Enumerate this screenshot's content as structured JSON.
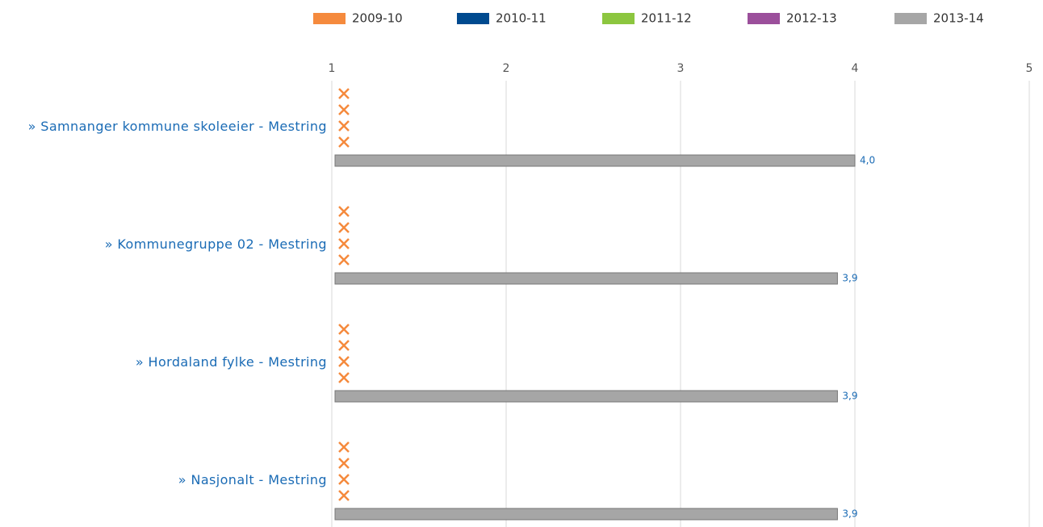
{
  "chart_data": {
    "type": "bar",
    "orientation": "horizontal",
    "categories": [
      "» Samnanger kommune skoleeier - Mestring",
      "» Kommunegruppe 02 - Mestring",
      "» Hordaland fylke - Mestring",
      "» Nasjonalt - Mestring"
    ],
    "series": [
      {
        "name": "2009-10",
        "color": "#f58a3d",
        "values": [
          null,
          null,
          null,
          null
        ]
      },
      {
        "name": "2010-11",
        "color": "#004a8f",
        "values": [
          null,
          null,
          null,
          null
        ]
      },
      {
        "name": "2011-12",
        "color": "#8cc63f",
        "values": [
          null,
          null,
          null,
          null
        ]
      },
      {
        "name": "2012-13",
        "color": "#9b4f9b",
        "values": [
          null,
          null,
          null,
          null
        ]
      },
      {
        "name": "2013-14",
        "color": "#a6a6a6",
        "values": [
          4,
          3.9,
          3.9,
          3.9
        ],
        "value_labels": [
          "4,0",
          "3,9",
          "3,9",
          "3,9"
        ]
      }
    ],
    "xlim": [
      1,
      5
    ],
    "xticks": [
      1,
      2,
      3,
      4,
      5
    ],
    "grid": true,
    "legend": "top"
  }
}
